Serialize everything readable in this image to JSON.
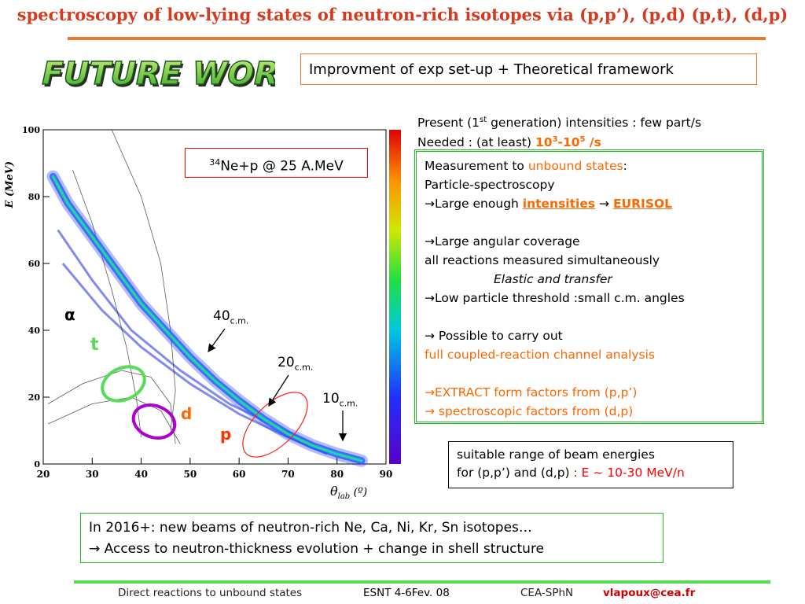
{
  "slide_title": "spectroscopy of low-lying states of neutron-rich isotopes via (p,p’), (p,d) (p,t), (d,p)",
  "future_works": "FUTURE WORKS",
  "improvement_box": "Improvment of exp set-up + Theoretical framework",
  "present": {
    "line1_pre": "Present (1",
    "line1_sup": "st",
    "line1_post": " generation) intensities : few part/s",
    "line2_pre": "Needed : (at least) ",
    "line2_val_a": "10",
    "line2_sup_a": "3",
    "line2_dash": "-10",
    "line2_sup_b": "5",
    "line2_unit": " /s"
  },
  "measurement": {
    "l1_pre": "Measurement to ",
    "l1_hl": "unbound states",
    "l1_post": ":",
    "l2": "Particle-spectroscopy",
    "l3_pre": "→Large enough ",
    "l3_hl": "intensities",
    "l3_mid": " → ",
    "l3_hl2": "EURISOL",
    "l4": "→Large angular coverage",
    "l5": " all reactions measured simultaneously",
    "l6": "Elastic and transfer",
    "l7": "→Low particle threshold :small c.m. angles",
    "l8": "→    Possible to carry out",
    "l9": " full coupled-reaction channel analysis",
    "l10": "→EXTRACT form factors from (p,p’)",
    "l11": "→ spectroscopic factors from (d,p)"
  },
  "beam_box": {
    "l1": "suitable range of beam energies",
    "l2_pre": "for (p,p’) and (d,p) ",
    "l2_hl": ": E ~ 10-30 MeV/n"
  },
  "news_box": {
    "l1": "In 2016+: new beams of neutron-rich Ne, Ca, Ni, Kr, Sn isotopes…",
    "l2": "→ Access to neutron-thickness evolution + change in shell structure"
  },
  "footer": {
    "left": "Direct reactions to unbound states",
    "mid": "ESNT 4-6Fev. 08",
    "right": "CEA-SPhN",
    "email": "vlapoux@cea.fr"
  },
  "colors": {
    "accent_orange": "#ff6600",
    "title_red": "#d63a1e",
    "green": "#22bb22"
  },
  "chart_data": {
    "type": "scatter",
    "title": "",
    "xlabel": "θ",
    "xlabel_sub": "lab",
    "xlabel_unit": " (º)",
    "ylabel": "E (MeV)",
    "xlim": [
      20,
      90
    ],
    "ylim": [
      0,
      100
    ],
    "xticks": [
      "20",
      "30",
      "40",
      "50",
      "60",
      "70",
      "80",
      "90"
    ],
    "yticks": [
      "0",
      "20",
      "40",
      "60",
      "80",
      "100"
    ],
    "reaction_label_sup": "34",
    "reaction_label": "Ne+p @ 25 A.MeV",
    "annotations": [
      {
        "base": "40",
        "sub": "c.m."
      },
      {
        "base": "20",
        "sub": "c.m."
      },
      {
        "base": "10",
        "sub": "c.m."
      }
    ],
    "particle_labels": [
      {
        "name": "α",
        "color": "#000000"
      },
      {
        "name": "t",
        "color": "#55dd55"
      },
      {
        "name": "d",
        "color": "#ff6600"
      },
      {
        "name": "p",
        "color": "#ff3300"
      }
    ],
    "series": [
      {
        "name": "",
        "values": [
          [
            22,
            86
          ],
          [
            25,
            78
          ],
          [
            30,
            68
          ],
          [
            35,
            58
          ],
          [
            40,
            48
          ],
          [
            45,
            40
          ],
          [
            50,
            32
          ],
          [
            55,
            25
          ],
          [
            60,
            19
          ],
          [
            65,
            13.5
          ],
          [
            70,
            9
          ],
          [
            75,
            5.5
          ],
          [
            80,
            3
          ],
          [
            85,
            1
          ]
        ]
      }
    ]
  }
}
